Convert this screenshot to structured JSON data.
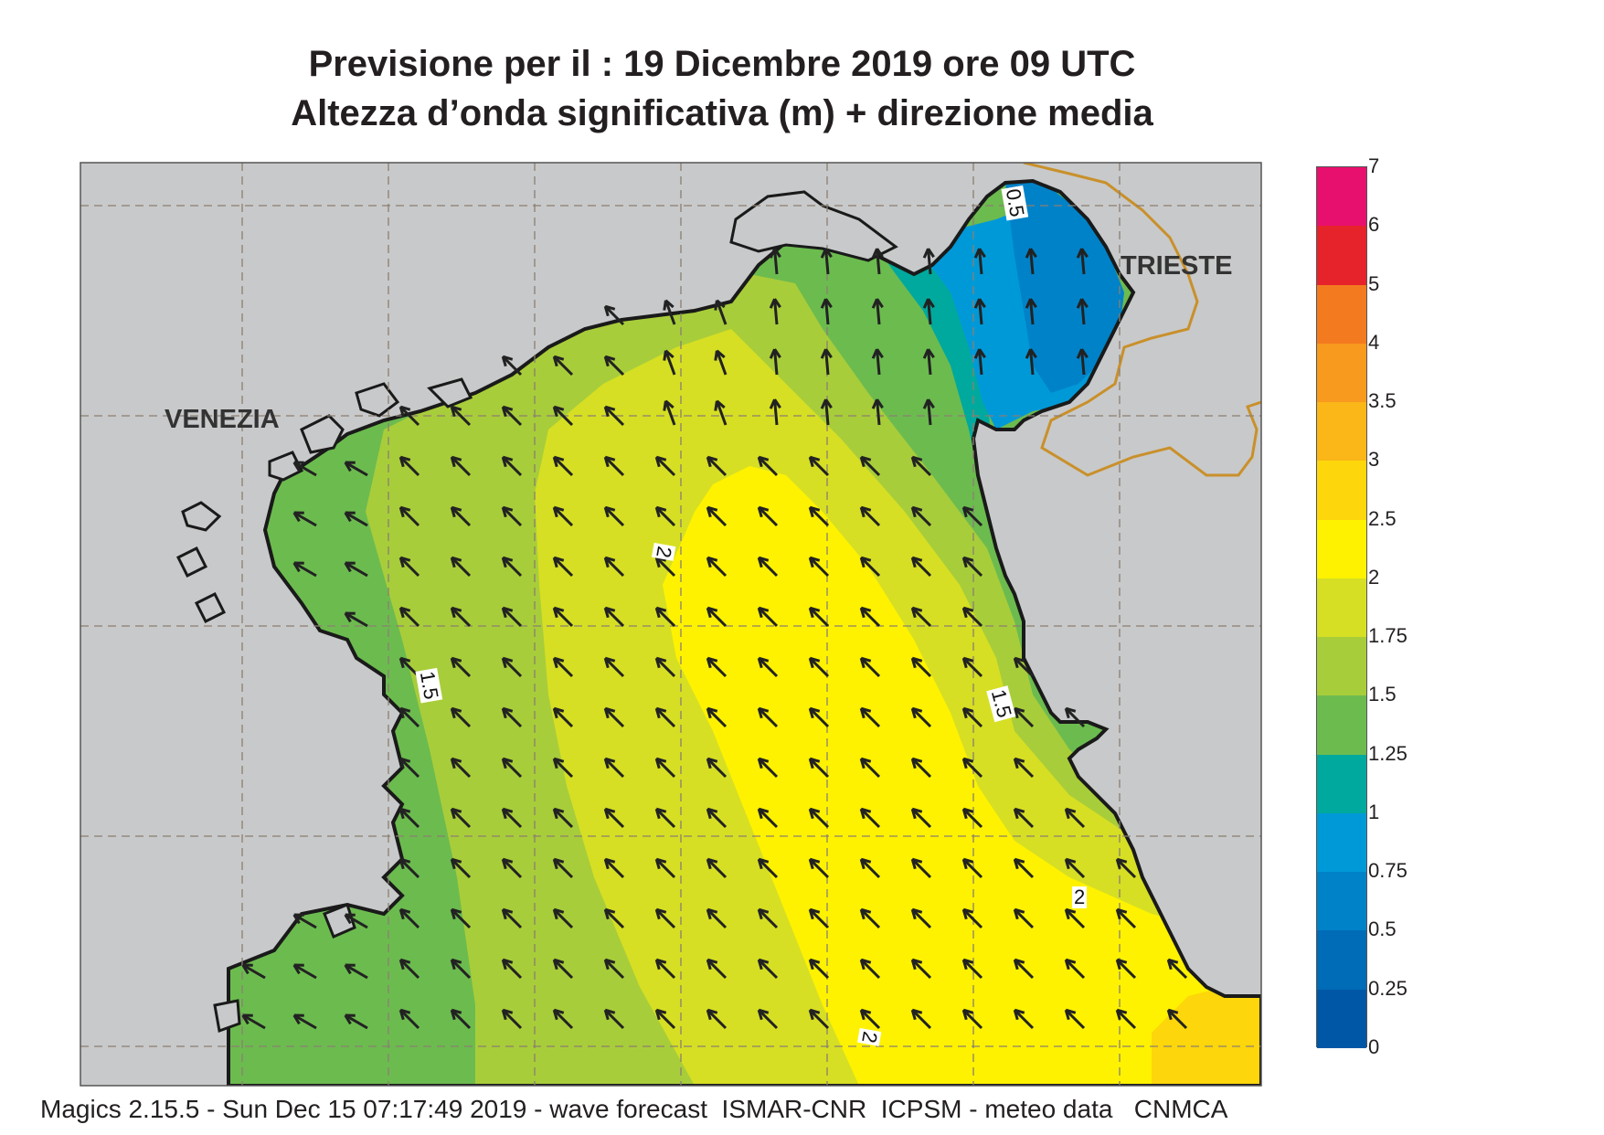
{
  "title": {
    "line1": "Previsione per il  :  19 Dicembre  2019   ore 09 UTC",
    "line2": "Altezza d’onda significativa (m) + direzione media"
  },
  "cities": {
    "venezia": "VENEZIA",
    "trieste": "TRIESTE"
  },
  "contour_labels": [
    "0.5",
    "2",
    "1.5",
    "1.5",
    "2",
    "2"
  ],
  "legend": {
    "ticks": [
      "7",
      "6",
      "5",
      "4",
      "3.5",
      "3",
      "2.5",
      "2",
      "1.75",
      "1.5",
      "1.25",
      "1",
      "0.75",
      "0.5",
      "0.25",
      "0"
    ],
    "colors": [
      "#e8106e",
      "#e6232b",
      "#f47a20",
      "#f79a1e",
      "#fbb617",
      "#fdd60b",
      "#fef200",
      "#d6df23",
      "#a8cd3a",
      "#6cbb4f",
      "#00a99d",
      "#0099d8",
      "#0082c8",
      "#006bb6",
      "#0057a6"
    ]
  },
  "footer": "Magics 2.15.5 - Sun Dec 15 07:17:49 2019 - wave forecast  ISMAR-CNR  ICPSM - meteo data   CNMCA",
  "colors": {
    "land": "#c8c9ca",
    "frame": "#555555",
    "border": "#c9902a",
    "arrow": "#222222"
  }
}
